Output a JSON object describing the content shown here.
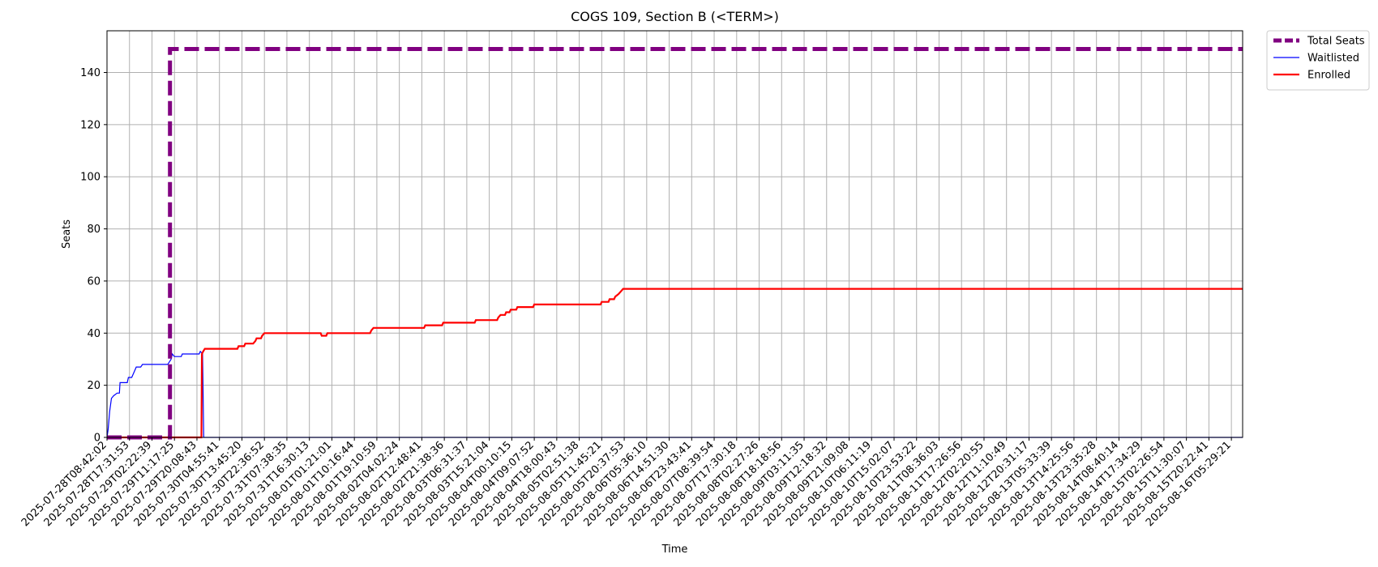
{
  "chart_data": {
    "type": "line",
    "title": "COGS 109, Section B (<TERM>)",
    "xlabel": "Time",
    "ylabel": "Seats",
    "ylim": [
      0,
      156
    ],
    "yticks": [
      0,
      20,
      40,
      60,
      80,
      100,
      120,
      140
    ],
    "grid": true,
    "legend_position": "outside top-right",
    "x_ticks": [
      "2025-07-28T08:42:02",
      "2025-07-28T17:31:53",
      "2025-07-29T02:22:39",
      "2025-07-29T11:17:25",
      "2025-07-29T20:08:43",
      "2025-07-30T04:55:41",
      "2025-07-30T13:45:20",
      "2025-07-30T22:36:52",
      "2025-07-31T07:38:35",
      "2025-07-31T16:30:13",
      "2025-08-01T01:21:01",
      "2025-08-01T10:16:44",
      "2025-08-01T19:10:59",
      "2025-08-02T04:02:24",
      "2025-08-02T12:48:41",
      "2025-08-02T21:38:36",
      "2025-08-03T06:31:37",
      "2025-08-03T15:21:04",
      "2025-08-04T00:10:15",
      "2025-08-04T09:07:52",
      "2025-08-04T18:00:43",
      "2025-08-05T02:51:38",
      "2025-08-05T11:45:21",
      "2025-08-05T20:37:53",
      "2025-08-06T05:36:10",
      "2025-08-06T14:51:30",
      "2025-08-06T23:43:41",
      "2025-08-07T08:39:54",
      "2025-08-07T17:30:18",
      "2025-08-08T02:27:26",
      "2025-08-08T18:18:56",
      "2025-08-09T03:11:35",
      "2025-08-09T12:18:32",
      "2025-08-09T21:09:08",
      "2025-08-10T06:11:19",
      "2025-08-10T15:02:07",
      "2025-08-10T23:53:22",
      "2025-08-11T08:36:03",
      "2025-08-11T17:26:56",
      "2025-08-12T02:20:55",
      "2025-08-12T11:10:49",
      "2025-08-12T20:31:17",
      "2025-08-13T05:33:39",
      "2025-08-13T14:25:56",
      "2025-08-13T23:35:28",
      "2025-08-14T08:40:14",
      "2025-08-14T17:34:29",
      "2025-08-15T02:26:54",
      "2025-08-15T11:30:07",
      "2025-08-15T20:22:41",
      "2025-08-16T05:29:21"
    ],
    "series": [
      {
        "name": "Total Seats",
        "color": "#800080",
        "style": "dashed-thick",
        "points": [
          [
            0,
            0
          ],
          [
            2.8,
            0
          ],
          [
            2.8,
            149
          ],
          [
            50.5,
            149
          ]
        ]
      },
      {
        "name": "Waitlisted",
        "color": "#0000ff",
        "style": "thin",
        "points": [
          [
            0,
            0
          ],
          [
            0.05,
            3
          ],
          [
            0.12,
            10
          ],
          [
            0.2,
            15
          ],
          [
            0.3,
            16
          ],
          [
            0.45,
            17
          ],
          [
            0.55,
            17
          ],
          [
            0.58,
            21
          ],
          [
            0.9,
            21
          ],
          [
            0.95,
            23
          ],
          [
            1.1,
            23
          ],
          [
            1.2,
            25
          ],
          [
            1.3,
            27
          ],
          [
            1.5,
            27
          ],
          [
            1.58,
            28
          ],
          [
            2.7,
            28
          ],
          [
            2.85,
            30
          ],
          [
            2.9,
            32
          ],
          [
            3.0,
            31
          ],
          [
            3.3,
            31
          ],
          [
            3.35,
            32
          ],
          [
            4.1,
            32
          ],
          [
            4.15,
            33
          ],
          [
            4.25,
            32
          ],
          [
            4.3,
            0
          ],
          [
            50.5,
            0
          ]
        ]
      },
      {
        "name": "Enrolled",
        "color": "#ff0000",
        "style": "solid",
        "points": [
          [
            0,
            0
          ],
          [
            4.2,
            0
          ],
          [
            4.22,
            32
          ],
          [
            4.28,
            33
          ],
          [
            4.35,
            34
          ],
          [
            5.8,
            34
          ],
          [
            5.85,
            35
          ],
          [
            6.1,
            35
          ],
          [
            6.15,
            36
          ],
          [
            6.5,
            36
          ],
          [
            6.6,
            37
          ],
          [
            6.65,
            38
          ],
          [
            6.85,
            38
          ],
          [
            6.9,
            39
          ],
          [
            7.0,
            40
          ],
          [
            9.5,
            40
          ],
          [
            9.55,
            39
          ],
          [
            9.75,
            39
          ],
          [
            9.8,
            40
          ],
          [
            11.7,
            40
          ],
          [
            11.75,
            41
          ],
          [
            11.85,
            42
          ],
          [
            14.1,
            42
          ],
          [
            14.15,
            43
          ],
          [
            14.9,
            43
          ],
          [
            14.95,
            44
          ],
          [
            16.35,
            44
          ],
          [
            16.4,
            45
          ],
          [
            17.35,
            45
          ],
          [
            17.4,
            46
          ],
          [
            17.5,
            47
          ],
          [
            17.7,
            47
          ],
          [
            17.75,
            48
          ],
          [
            17.9,
            48
          ],
          [
            17.95,
            49
          ],
          [
            18.2,
            49
          ],
          [
            18.25,
            50
          ],
          [
            18.95,
            50
          ],
          [
            19.0,
            51
          ],
          [
            21.95,
            51
          ],
          [
            22.0,
            52
          ],
          [
            22.3,
            52
          ],
          [
            22.35,
            53
          ],
          [
            22.55,
            53
          ],
          [
            22.6,
            54
          ],
          [
            22.75,
            55
          ],
          [
            22.85,
            56
          ],
          [
            22.95,
            57
          ],
          [
            50.5,
            57
          ]
        ]
      }
    ]
  }
}
